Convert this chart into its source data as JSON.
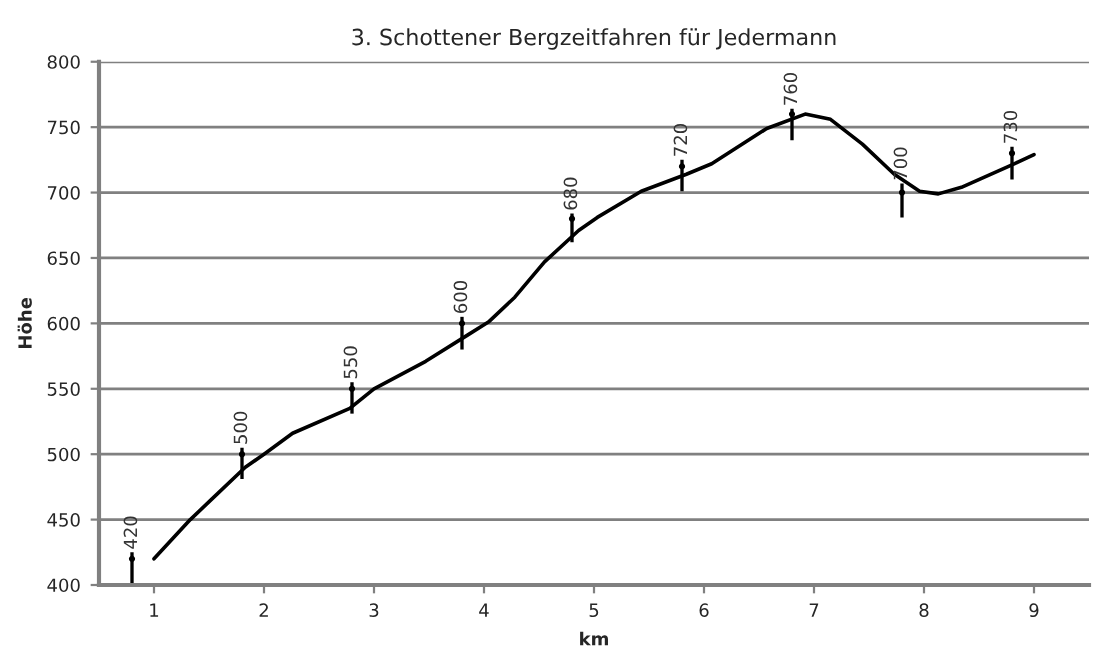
{
  "chart_data": {
    "type": "line",
    "title": "3. Schottener Bergzeitfahren für Jedermann",
    "xlabel": "km",
    "ylabel": "Höhe",
    "x": [
      1.0,
      1.33,
      1.53,
      1.83,
      2.0,
      2.26,
      2.78,
      3.0,
      3.47,
      3.85,
      4.04,
      4.28,
      4.55,
      4.86,
      5.03,
      5.43,
      5.84,
      6.07,
      6.57,
      6.92,
      7.15,
      7.44,
      7.73,
      7.96,
      8.13,
      8.34,
      8.82,
      9.0
    ],
    "series": [
      {
        "color": "#000000",
        "values": [
          420,
          450,
          466,
          490,
          500,
          516,
          535,
          550,
          571,
          591,
          601,
          620,
          647,
          671,
          681,
          701,
          714,
          722,
          749,
          760,
          756,
          737,
          714,
          701,
          699,
          704,
          722,
          729
        ]
      },
      {
        "type": "scatter",
        "color": "#000000",
        "marker": "circle",
        "x": [
          0.8,
          1.8,
          2.8,
          3.8,
          4.8,
          5.8,
          6.8,
          7.8,
          8.8
        ],
        "values": [
          420,
          500,
          550,
          600,
          680,
          720,
          760,
          700,
          730
        ],
        "data_labels": true,
        "errors": [
          [
            400,
            425
          ],
          [
            481,
            505
          ],
          [
            531,
            555
          ],
          [
            580,
            605
          ],
          [
            662,
            684
          ],
          [
            701,
            725
          ],
          [
            740,
            764
          ],
          [
            681,
            707
          ],
          [
            710,
            735
          ]
        ]
      }
    ],
    "xlim": [
      0.5,
      9.5
    ],
    "xticks": [
      1,
      2,
      3,
      4,
      5,
      6,
      7,
      8,
      9
    ],
    "ylim": [
      400,
      800
    ],
    "yticks": [
      400,
      450,
      500,
      550,
      600,
      650,
      700,
      750,
      800
    ],
    "grid": "y",
    "legend": false,
    "marker": "none",
    "line_style": "solid"
  }
}
